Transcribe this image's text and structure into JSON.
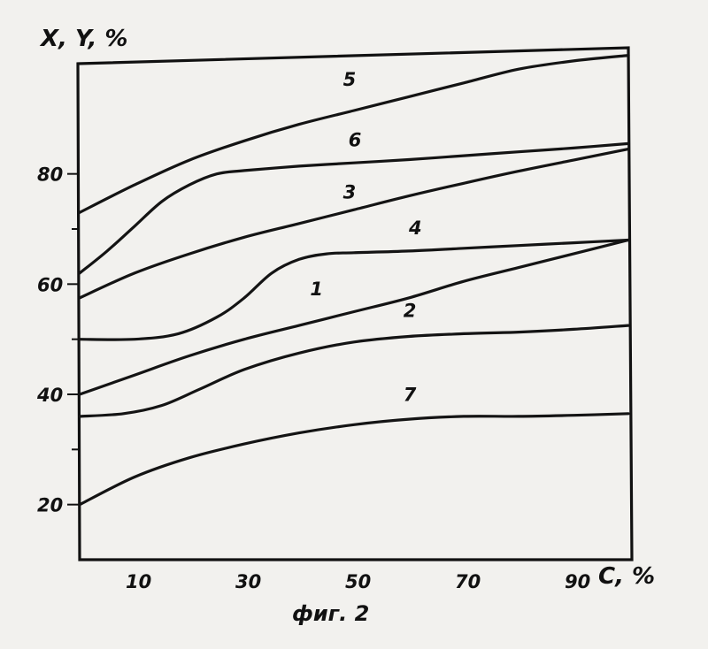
{
  "chart_data": {
    "type": "line",
    "ylabel": "X, Y, %",
    "xlabel": "C, %",
    "caption": "фиг. 2",
    "xlim": [
      0,
      100
    ],
    "ylim": [
      10,
      100
    ],
    "x_ticks": [
      {
        "value": 10,
        "label": "10"
      },
      {
        "value": 30,
        "label": "30"
      },
      {
        "value": 50,
        "label": "50"
      },
      {
        "value": 70,
        "label": "70"
      },
      {
        "value": 90,
        "label": "90"
      }
    ],
    "y_ticks": [
      {
        "value": 20,
        "label": "20"
      },
      {
        "value": 40,
        "label": "40"
      },
      {
        "value": 60,
        "label": "60"
      },
      {
        "value": 80,
        "label": "80"
      }
    ],
    "y_minor_ticks": [
      30,
      50,
      70
    ],
    "grid": false,
    "series": [
      {
        "name": "5",
        "label_at": [
          48,
          96
        ],
        "points": [
          [
            0,
            73
          ],
          [
            10,
            78
          ],
          [
            20,
            82.5
          ],
          [
            30,
            86
          ],
          [
            40,
            89
          ],
          [
            50,
            91.5
          ],
          [
            60,
            94
          ],
          [
            70,
            96.5
          ],
          [
            80,
            99
          ],
          [
            90,
            100.5
          ],
          [
            100,
            101.5
          ]
        ]
      },
      {
        "name": "6",
        "label_at": [
          49,
          85
        ],
        "points": [
          [
            0,
            62
          ],
          [
            5,
            66
          ],
          [
            10,
            70.5
          ],
          [
            15,
            75
          ],
          [
            20,
            78
          ],
          [
            25,
            80
          ],
          [
            30,
            80.6
          ],
          [
            40,
            81.4
          ],
          [
            50,
            82
          ],
          [
            60,
            82.6
          ],
          [
            70,
            83.3
          ],
          [
            80,
            84
          ],
          [
            90,
            84.7
          ],
          [
            100,
            85.5
          ]
        ]
      },
      {
        "name": "3",
        "label_at": [
          48,
          75.5
        ],
        "points": [
          [
            0,
            57.5
          ],
          [
            10,
            62
          ],
          [
            20,
            65.5
          ],
          [
            30,
            68.5
          ],
          [
            40,
            71
          ],
          [
            50,
            73.5
          ],
          [
            60,
            76
          ],
          [
            70,
            78.3
          ],
          [
            80,
            80.5
          ],
          [
            90,
            82.5
          ],
          [
            100,
            84.5
          ]
        ]
      },
      {
        "name": "4",
        "label_at": [
          60,
          69
        ],
        "points": [
          [
            0,
            50
          ],
          [
            10,
            50
          ],
          [
            18,
            51
          ],
          [
            25,
            54
          ],
          [
            30,
            57.5
          ],
          [
            35,
            62
          ],
          [
            40,
            64.5
          ],
          [
            45,
            65.5
          ],
          [
            50,
            65.7
          ],
          [
            60,
            66
          ],
          [
            70,
            66.5
          ],
          [
            80,
            67
          ],
          [
            90,
            67.5
          ],
          [
            100,
            68
          ]
        ]
      },
      {
        "name": "1",
        "label_at": [
          42,
          58
        ],
        "points": [
          [
            0,
            40
          ],
          [
            10,
            43.5
          ],
          [
            20,
            47
          ],
          [
            30,
            50
          ],
          [
            40,
            52.5
          ],
          [
            50,
            55
          ],
          [
            60,
            57.5
          ],
          [
            70,
            60.5
          ],
          [
            80,
            63
          ],
          [
            90,
            65.5
          ],
          [
            100,
            68
          ]
        ]
      },
      {
        "name": "2",
        "label_at": [
          59,
          54
        ],
        "points": [
          [
            0,
            36
          ],
          [
            8,
            36.5
          ],
          [
            15,
            38
          ],
          [
            22,
            41
          ],
          [
            30,
            44.5
          ],
          [
            40,
            47.5
          ],
          [
            50,
            49.5
          ],
          [
            60,
            50.5
          ],
          [
            70,
            51
          ],
          [
            80,
            51.3
          ],
          [
            90,
            51.8
          ],
          [
            100,
            52.5
          ]
        ]
      },
      {
        "name": "7",
        "label_at": [
          59,
          38.8
        ],
        "points": [
          [
            0,
            20
          ],
          [
            10,
            25
          ],
          [
            20,
            28.5
          ],
          [
            30,
            31
          ],
          [
            40,
            33
          ],
          [
            50,
            34.5
          ],
          [
            60,
            35.5
          ],
          [
            70,
            36
          ],
          [
            80,
            36
          ],
          [
            90,
            36.2
          ],
          [
            100,
            36.5
          ]
        ]
      }
    ]
  }
}
